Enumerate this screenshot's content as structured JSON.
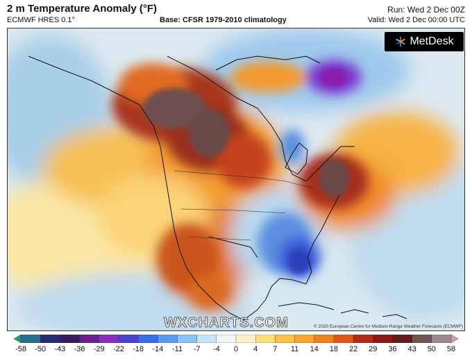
{
  "header": {
    "title": "2 m Temperature Anomaly (°F)",
    "model": "ECMWF HRES 0.1°",
    "base": "Base: CFSR 1979-2010 climatology",
    "run": "Run: Wed 2 Dec 00Z",
    "valid": "Valid: Wed 2 Dec 00:00 UTC"
  },
  "branding": {
    "logo_text": "MetDesk",
    "watermark": "WXCHARTS.COM",
    "credit": "© 2020 European Centre for Medium-Range Weather Forecasts (ECMWF)"
  },
  "colorbar": {
    "ticks": [
      "-58",
      "-50",
      "-43",
      "-36",
      "-29",
      "-22",
      "-18",
      "-14",
      "-11",
      "-7",
      "-4",
      "0",
      "4",
      "7",
      "11",
      "14",
      "18",
      "22",
      "29",
      "36",
      "43",
      "50",
      "58"
    ],
    "colors": [
      "#1f9e6e",
      "#2b6f8f",
      "#2a2a6e",
      "#3a1a5e",
      "#6a1f8f",
      "#8a2fc0",
      "#4a3fd0",
      "#3a6ee8",
      "#5a9af0",
      "#8cc4f4",
      "#c6e4f6",
      "#eef6f6",
      "#fbf2cc",
      "#fde07a",
      "#fcc24a",
      "#f9a530",
      "#f2801c",
      "#e3521a",
      "#b8281a",
      "#8a1a14",
      "#5e1c1a",
      "#6e5656",
      "#9b8a8a",
      "#d99ab0"
    ],
    "scale_min": -58,
    "scale_max": 58
  }
}
